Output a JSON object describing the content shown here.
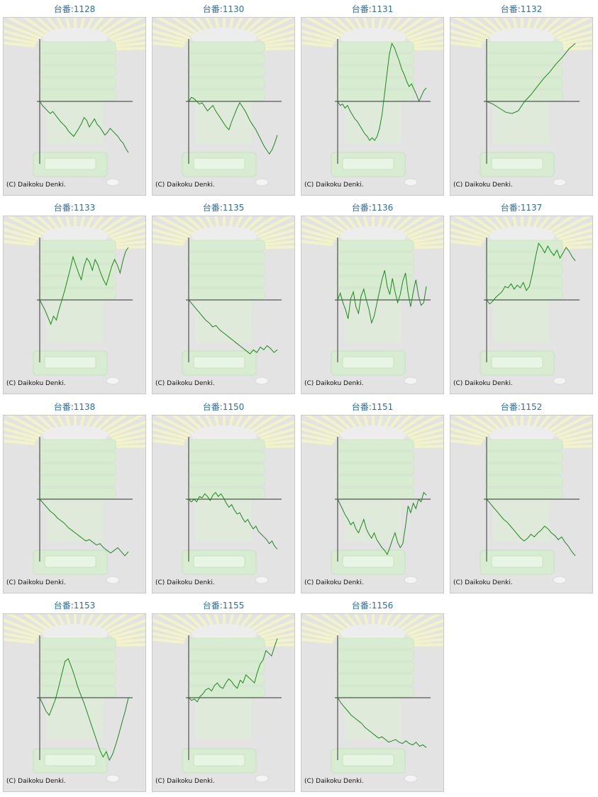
{
  "copyright": "(C) Daikoku Denki.",
  "colors": {
    "title": "#2d6fa3",
    "line": "#1a8a1a",
    "axis": "#333333",
    "panel": "#e3e3e3"
  },
  "graphs": [
    {
      "title": "台番:1128",
      "values": [
        0,
        -6,
        -10,
        -14,
        -18,
        -15,
        -20,
        -25,
        -30,
        -34,
        -38,
        -44,
        -48,
        -52,
        -46,
        -40,
        -33,
        -24,
        -28,
        -38,
        -32,
        -26,
        -34,
        -38,
        -44,
        -50,
        -46,
        -40,
        -44,
        -48,
        -52,
        -58,
        -62,
        -70,
        -76
      ]
    },
    {
      "title": "台番:1130",
      "values": [
        0,
        6,
        4,
        0,
        -4,
        -2,
        -8,
        -14,
        -10,
        -6,
        -14,
        -20,
        -26,
        -32,
        -38,
        -42,
        -30,
        -20,
        -10,
        -2,
        -8,
        -14,
        -22,
        -30,
        -36,
        -42,
        -50,
        -58,
        -66,
        -72,
        -78,
        -72,
        -62,
        -50
      ]
    },
    {
      "title": "台番:1131",
      "values": [
        0,
        -6,
        -4,
        -10,
        -6,
        -14,
        -20,
        -26,
        -30,
        -36,
        -42,
        -48,
        -52,
        -58,
        -54,
        -58,
        -52,
        -40,
        -20,
        10,
        40,
        70,
        86,
        80,
        70,
        60,
        48,
        40,
        30,
        22,
        26,
        18,
        10,
        0,
        8,
        16,
        20
      ]
    },
    {
      "title": "台番:1132",
      "values": [
        0,
        -4,
        -10,
        -16,
        -18,
        -14,
        0,
        10,
        22,
        34,
        44,
        56,
        66,
        78,
        86
      ]
    },
    {
      "title": "台番:1133",
      "values": [
        0,
        -8,
        -16,
        -26,
        -36,
        -24,
        -30,
        -14,
        0,
        14,
        30,
        46,
        64,
        52,
        40,
        30,
        50,
        62,
        56,
        44,
        60,
        52,
        40,
        30,
        22,
        36,
        50,
        60,
        52,
        40,
        58,
        72,
        78
      ]
    },
    {
      "title": "台番:1135",
      "values": [
        0,
        -6,
        -12,
        -18,
        -24,
        -30,
        -34,
        -40,
        -38,
        -44,
        -48,
        -52,
        -56,
        -60,
        -64,
        -68,
        -72,
        -76,
        -80,
        -74,
        -78,
        -70,
        -74,
        -68,
        -72,
        -78,
        -74
      ]
    },
    {
      "title": "台番:1136",
      "values": [
        0,
        10,
        -4,
        -14,
        -28,
        2,
        12,
        -10,
        -20,
        6,
        16,
        0,
        -14,
        -34,
        -24,
        -6,
        12,
        30,
        44,
        20,
        8,
        32,
        12,
        -4,
        8,
        28,
        40,
        10,
        -10,
        12,
        30,
        6,
        -8,
        -4,
        20
      ]
    },
    {
      "title": "台番:1137",
      "values": [
        0,
        -6,
        -2,
        4,
        8,
        12,
        20,
        18,
        24,
        16,
        22,
        18,
        26,
        14,
        20,
        40,
        64,
        84,
        78,
        70,
        80,
        72,
        66,
        74,
        62,
        70,
        78,
        72,
        64,
        58
      ]
    },
    {
      "title": "台番:1138",
      "values": [
        0,
        -6,
        -12,
        -18,
        -22,
        -28,
        -32,
        -36,
        -42,
        -46,
        -50,
        -54,
        -58,
        -62,
        -60,
        -64,
        -68,
        -66,
        -72,
        -76,
        -80,
        -76,
        -72,
        -78,
        -84,
        -78
      ]
    },
    {
      "title": "台番:1150",
      "values": [
        0,
        -4,
        0,
        -4,
        4,
        2,
        8,
        4,
        -2,
        6,
        10,
        4,
        8,
        2,
        -6,
        -12,
        -8,
        -16,
        -22,
        -20,
        -28,
        -34,
        -30,
        -38,
        -44,
        -40,
        -48,
        -52,
        -56,
        -60,
        -66,
        -62,
        -70,
        -74
      ]
    },
    {
      "title": "台番:1151",
      "values": [
        0,
        -8,
        -16,
        -24,
        -30,
        -38,
        -34,
        -44,
        -50,
        -40,
        -30,
        -44,
        -52,
        -58,
        -50,
        -60,
        -66,
        -72,
        -76,
        -82,
        -72,
        -60,
        -50,
        -64,
        -72,
        -66,
        -40,
        -10,
        -20,
        -6,
        -14,
        0,
        -4,
        10,
        6
      ]
    },
    {
      "title": "台番:1152",
      "values": [
        0,
        -6,
        -12,
        -18,
        -24,
        -30,
        -34,
        -40,
        -46,
        -52,
        -58,
        -62,
        -58,
        -52,
        -56,
        -50,
        -46,
        -40,
        -44,
        -50,
        -54,
        -60,
        -56,
        -64,
        -70,
        -78,
        -84
      ]
    },
    {
      "title": "台番:1153",
      "values": [
        0,
        -10,
        -20,
        -26,
        -14,
        -2,
        16,
        36,
        54,
        58,
        46,
        32,
        16,
        4,
        -8,
        -22,
        -36,
        -50,
        -64,
        -78,
        -88,
        -80,
        -94,
        -84,
        -70,
        -54,
        -36,
        -20,
        0
      ]
    },
    {
      "title": "台番:1155",
      "values": [
        0,
        -4,
        -2,
        -6,
        2,
        6,
        12,
        14,
        10,
        18,
        22,
        16,
        14,
        22,
        28,
        24,
        18,
        14,
        26,
        22,
        34,
        30,
        26,
        22,
        38,
        50,
        56,
        70,
        66,
        62,
        76,
        88
      ]
    },
    {
      "title": "台番:1156",
      "values": [
        0,
        -8,
        -14,
        -20,
        -26,
        -30,
        -34,
        -38,
        -44,
        -48,
        -52,
        -56,
        -60,
        -58,
        -62,
        -66,
        -64,
        -62,
        -66,
        -68,
        -64,
        -68,
        -70,
        -66,
        -72,
        -70,
        -74
      ]
    }
  ]
}
